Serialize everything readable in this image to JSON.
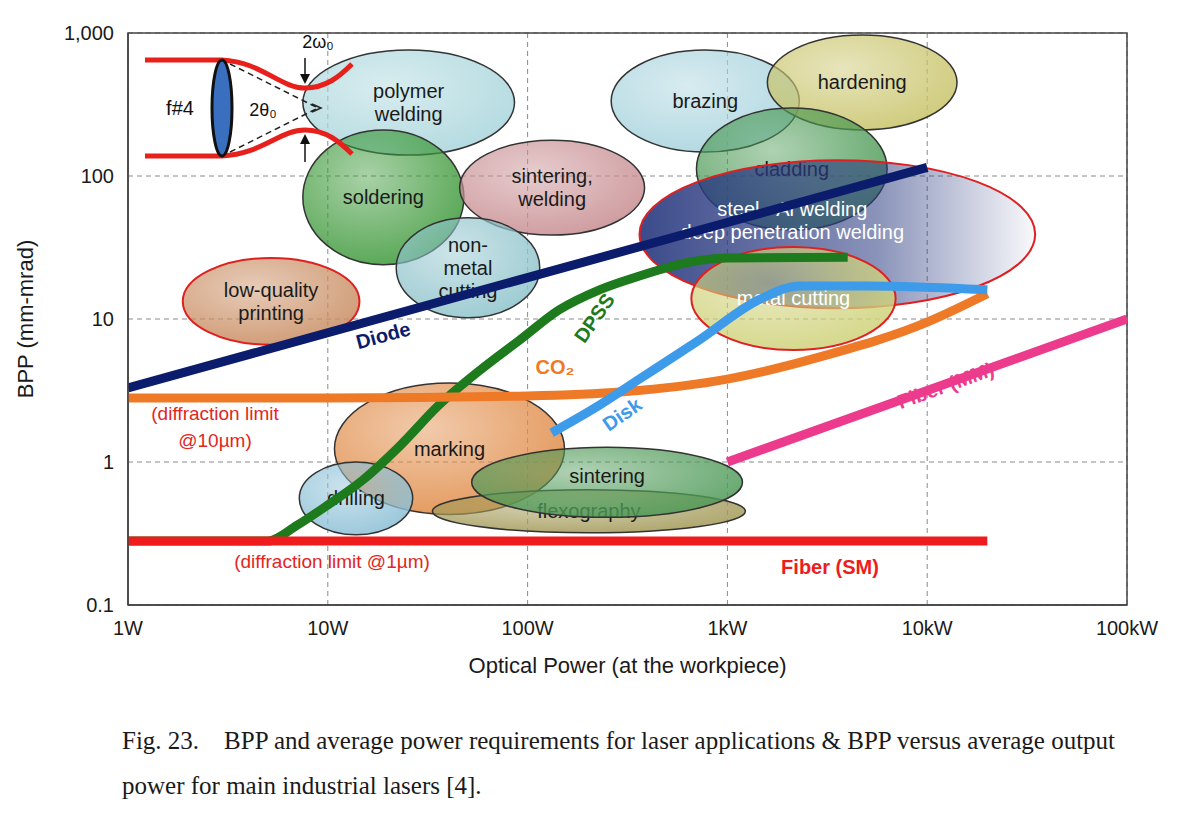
{
  "chart_data": {
    "type": "line",
    "x_label": "Optical Power (at the workpiece)",
    "y_label": "BPP (mm-mrad)",
    "log": true,
    "grid": true,
    "xlim": [
      1,
      100000
    ],
    "xticks": [
      {
        "value": 1,
        "label": "1W"
      },
      {
        "value": 10,
        "label": "10W"
      },
      {
        "value": 100,
        "label": "100W"
      },
      {
        "value": 1000,
        "label": "1kW"
      },
      {
        "value": 10000,
        "label": "10kW"
      },
      {
        "value": 100000,
        "label": "100kW"
      }
    ],
    "ylim": [
      0.1,
      1000
    ],
    "yticks": [
      0.1,
      1,
      10,
      100,
      {
        "value": 1000,
        "label": "1,000"
      }
    ],
    "series": [
      {
        "name": "Diode",
        "color": "#0c1c6c",
        "x": [
          1,
          10000
        ],
        "values": [
          3.3,
          115
        ]
      },
      {
        "name": "DPSS",
        "color": "#1d7a1d",
        "x": [
          1,
          5,
          7,
          10,
          15,
          23,
          36,
          58,
          91,
          144,
          229,
          363,
          646,
          1000,
          4000
        ],
        "values": [
          0.28,
          0.28,
          0.36,
          0.5,
          0.75,
          1.3,
          2.5,
          4.4,
          7.1,
          11.6,
          16,
          20,
          25,
          26.7,
          27
        ]
      },
      {
        "name": "CO₂",
        "color": "#ee7a28",
        "x": [
          1,
          10,
          100,
          300,
          1000,
          3000,
          10000,
          20000
        ],
        "values": [
          2.8,
          2.8,
          2.9,
          3.1,
          3.8,
          5.5,
          9.5,
          15
        ]
      },
      {
        "name": "Disk",
        "color": "#3d9be9",
        "x": [
          132,
          229,
          363,
          720,
          1450,
          2300,
          5000,
          20000
        ],
        "values": [
          1.6,
          2.5,
          3.8,
          7.1,
          13.7,
          17,
          17,
          16
        ]
      },
      {
        "name": "Fiber (MM)",
        "color": "#ec3a8c",
        "x": [
          1000,
          100000
        ],
        "values": [
          1,
          10
        ]
      },
      {
        "name": "Fiber (SM)",
        "color": "#ee1c1c",
        "x": [
          1,
          20000
        ],
        "values": [
          0.28,
          0.28
        ]
      }
    ],
    "annotations": [
      {
        "text": "(diffraction limit\n@10µm)",
        "color": "#e3261e"
      },
      {
        "text": "(diffraction limit @1µm)",
        "color": "#e3261e"
      }
    ],
    "regions": [
      {
        "name": "polymer\nwelding",
        "color": "#a9d6dc",
        "x_range": [
          7.5,
          86
        ],
        "y_range": [
          140,
          760
        ]
      },
      {
        "name": "soldering",
        "color": "#3f9a3c",
        "x_range": [
          7.5,
          48
        ],
        "y_range": [
          24,
          210
        ]
      },
      {
        "name": "sintering,\nwelding",
        "color": "#c88e92",
        "x_range": [
          45.7,
          385
        ],
        "y_range": [
          38.6,
          178
        ]
      },
      {
        "name": "non-\nmetal\ncutting",
        "color": "#8fc4cc",
        "x_range": [
          22,
          115
        ],
        "y_range": [
          10.2,
          51
        ]
      },
      {
        "name": "low-quality\nprinting",
        "color": "#c98d62",
        "x_range": [
          1.88,
          14.4
        ],
        "y_range": [
          6.6,
          26.7
        ]
      },
      {
        "name": "brazing",
        "color": "#a7d3dd",
        "x_range": [
          262,
          2290
        ],
        "y_range": [
          147,
          760
        ]
      },
      {
        "name": "hardening",
        "color": "#c9c46a",
        "x_range": [
          1585,
          14100
        ],
        "y_range": [
          210,
          968
        ]
      },
      {
        "name": "cladding",
        "color": "#4c9a55",
        "x_range": [
          700,
          6300
        ],
        "y_range": [
          42,
          299
        ]
      },
      {
        "name": "steel - Al welding\ndeep penetration welding",
        "color": "#2a3a80",
        "x_range": [
          363,
          34700
        ],
        "y_range": [
          11.9,
          129
        ]
      },
      {
        "name": "metal cutting",
        "color": "#cfd27a",
        "x_range": [
          660,
          6950
        ],
        "y_range": [
          6.07,
          31.9
        ]
      },
      {
        "name": "marking",
        "color": "#e08a45",
        "x_range": [
          10.8,
          153
        ],
        "y_range": [
          0.43,
          3.57
        ]
      },
      {
        "name": "drilling",
        "color": "#8cc0d6",
        "x_range": [
          7.2,
          26.6
        ],
        "y_range": [
          0.31,
          1.0
        ]
      },
      {
        "name": "flexography",
        "color": "#a39a58",
        "x_range": [
          33.4,
          1230
        ],
        "y_range": [
          0.32,
          0.64
        ]
      },
      {
        "name": "sintering",
        "color": "#4f9a58",
        "x_range": [
          52.5,
          1190
        ],
        "y_range": [
          0.41,
          1.27
        ]
      }
    ],
    "inset": {
      "lens": "f#4",
      "waist": "2ω₀",
      "divergence": "2θ₀"
    },
    "caption": "Fig. 23.    BPP and average power requirements for laser applications & BPP versus average output power for main industrial lasers [4]."
  }
}
